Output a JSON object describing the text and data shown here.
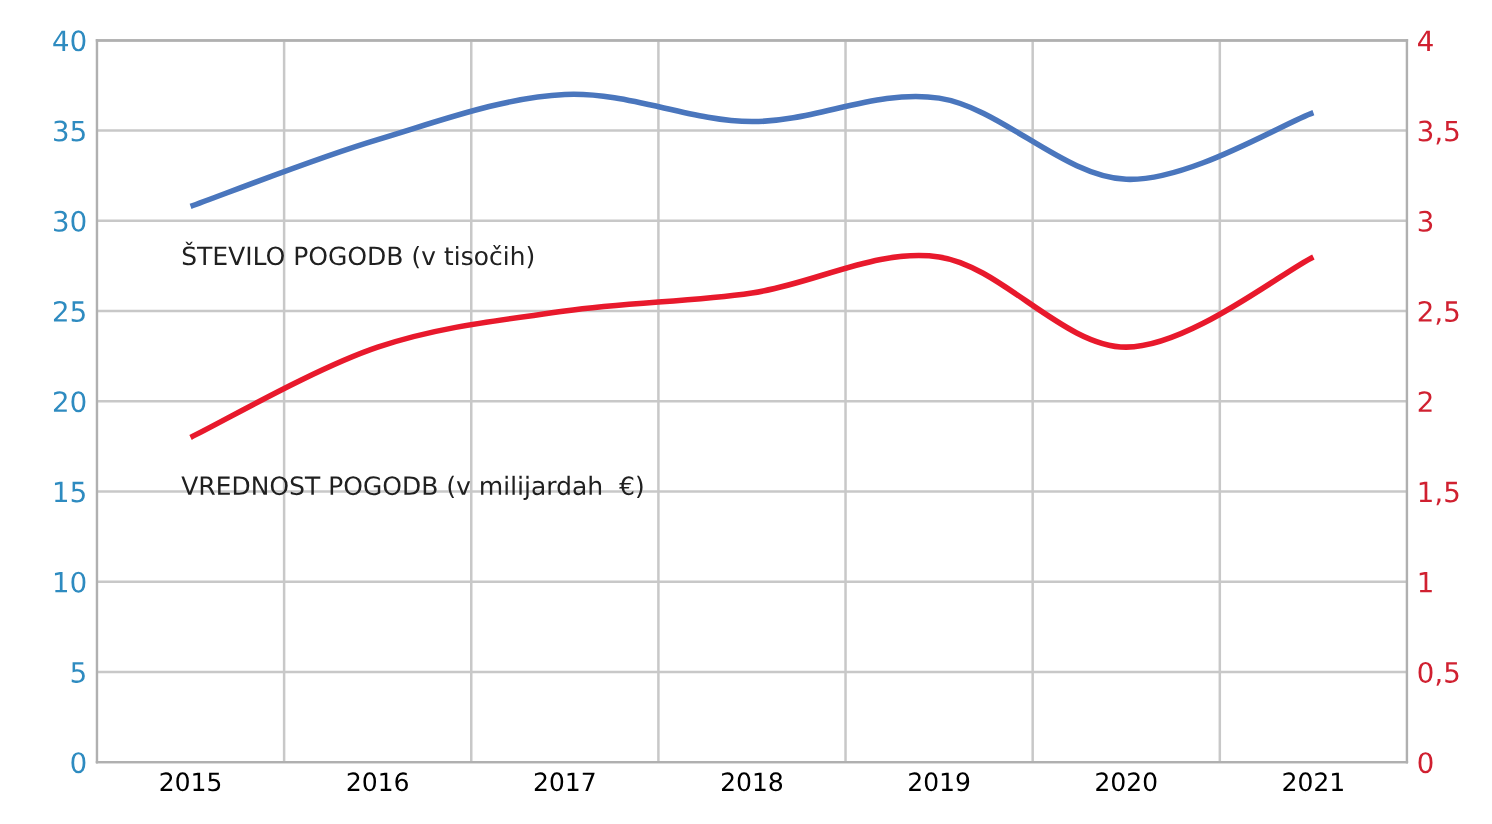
{
  "chart_data": {
    "type": "line",
    "categories": [
      "2015",
      "2016",
      "2017",
      "2018",
      "2019",
      "2020",
      "2021"
    ],
    "series": [
      {
        "name": "ŠTEVILO POGODB (v tisočih)",
        "color": "#4a76bd",
        "values": [
          30.8,
          34.5,
          37,
          35.5,
          36.8,
          32.3,
          36
        ]
      },
      {
        "name": "VREDNOST POGODB (v milijardah  €)",
        "color": "#e8192c",
        "axis": "y2",
        "values": [
          1.8,
          2.3,
          2.5,
          2.6,
          2.8,
          2.3,
          2.8
        ]
      }
    ],
    "ylim": [
      0,
      40
    ],
    "yticks": [
      0,
      5,
      10,
      15,
      20,
      25,
      30,
      35,
      40
    ],
    "y2lim": [
      0,
      4
    ],
    "y2ticks": [
      0,
      {
        "value": 0.5,
        "label": "0,5"
      },
      1,
      {
        "value": 1.5,
        "label": "1,5"
      },
      2,
      {
        "value": 2.5,
        "label": "2,5"
      },
      3,
      {
        "value": 3.5,
        "label": "3,5"
      },
      4
    ],
    "grid": true,
    "legend": false
  }
}
